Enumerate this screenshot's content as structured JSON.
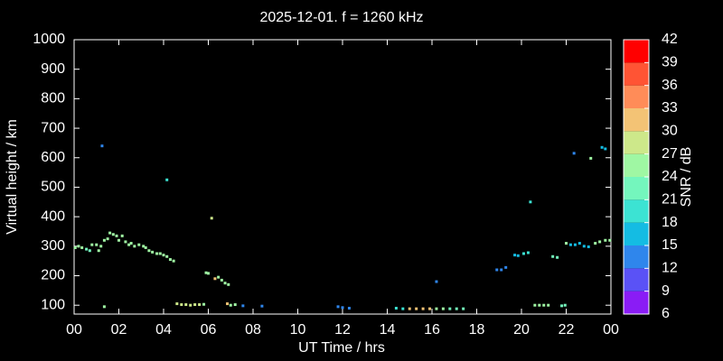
{
  "chart_data": {
    "type": "scatter",
    "title": "2025-12-01. f = 1260 kHz",
    "x_label": "UT Time / hrs",
    "y_label": "Virtual height / km",
    "xlim": [
      0,
      24
    ],
    "ylim": [
      70,
      1000
    ],
    "xticks": [
      {
        "value": 0,
        "label": "00"
      },
      {
        "value": 2,
        "label": "02"
      },
      {
        "value": 4,
        "label": "04"
      },
      {
        "value": 6,
        "label": "06"
      },
      {
        "value": 8,
        "label": "08"
      },
      10,
      12,
      14,
      16,
      18,
      20,
      22,
      {
        "value": 24,
        "label": "00"
      }
    ],
    "yticks": [
      100,
      200,
      300,
      400,
      500,
      600,
      700,
      800,
      900,
      1000
    ],
    "colorbar": {
      "label": "SNR / dB",
      "lim": [
        6,
        42
      ],
      "ticks": [
        6,
        9,
        12,
        15,
        18,
        21,
        24,
        27,
        30,
        33,
        36,
        39,
        42
      ],
      "colors": [
        "#8a1cf5",
        "#5a52f6",
        "#2f86ec",
        "#14bce3",
        "#3ce3d3",
        "#74f6bd",
        "#9ff7a3",
        "#cde88a",
        "#f3c375",
        "#ff8c58",
        "#ff5434",
        "#ff0000"
      ]
    },
    "x": [
      0.05,
      0.2,
      0.35,
      0.55,
      0.7,
      0.8,
      1.0,
      1.1,
      1.2,
      1.35,
      1.5,
      1.6,
      1.75,
      1.9,
      2.0,
      2.15,
      2.3,
      2.45,
      2.55,
      2.7,
      2.9,
      3.1,
      3.2,
      3.35,
      3.5,
      3.7,
      3.85,
      4.0,
      4.15,
      4.3,
      4.45,
      1.35,
      1.25,
      4.15,
      6.15,
      4.6,
      4.8,
      5.0,
      5.2,
      5.4,
      5.6,
      5.8,
      5.9,
      6.0,
      6.3,
      6.45,
      6.6,
      6.75,
      6.9,
      6.85,
      7.0,
      7.2,
      7.55,
      8.4,
      11.8,
      12.0,
      12.3,
      14.4,
      14.7,
      15.0,
      15.3,
      15.6,
      15.9,
      16.2,
      16.5,
      16.8,
      17.1,
      17.4,
      16.2,
      18.9,
      19.1,
      19.3,
      19.7,
      19.85,
      20.1,
      20.3,
      20.4,
      20.6,
      20.8,
      21.0,
      21.2,
      21.4,
      21.6,
      21.8,
      21.95,
      22.0,
      22.2,
      22.4,
      22.6,
      22.8,
      23.0,
      22.35,
      23.1,
      23.3,
      23.5,
      23.75,
      23.95,
      23.6,
      23.75
    ],
    "values": [
      295,
      300,
      295,
      290,
      285,
      305,
      305,
      285,
      300,
      320,
      325,
      345,
      340,
      335,
      320,
      335,
      315,
      305,
      310,
      300,
      305,
      300,
      295,
      285,
      280,
      275,
      275,
      270,
      265,
      255,
      250,
      95,
      640,
      525,
      395,
      105,
      102,
      102,
      100,
      102,
      102,
      103,
      210,
      208,
      190,
      195,
      185,
      175,
      170,
      105,
      100,
      102,
      98,
      97,
      95,
      92,
      90,
      90,
      88,
      88,
      88,
      88,
      88,
      88,
      88,
      88,
      88,
      88,
      180,
      220,
      220,
      228,
      270,
      268,
      275,
      278,
      450,
      100,
      100,
      100,
      100,
      265,
      262,
      98,
      100,
      310,
      305,
      305,
      310,
      300,
      298,
      615,
      598,
      310,
      315,
      320,
      320,
      635,
      630
    ],
    "snr": [
      24,
      24,
      24,
      22,
      22,
      24,
      26,
      24,
      24,
      24,
      24,
      24,
      24,
      24,
      24,
      24,
      24,
      24,
      24,
      24,
      24,
      24,
      24,
      26,
      26,
      26,
      26,
      26,
      26,
      26,
      26,
      24,
      12,
      18,
      27,
      27,
      27,
      27,
      29,
      27,
      27,
      24,
      24,
      24,
      30,
      24,
      24,
      24,
      24,
      30,
      24,
      24,
      12,
      12,
      12,
      12,
      12,
      18,
      18,
      30,
      30,
      30,
      30,
      24,
      24,
      21,
      21,
      21,
      12,
      12,
      12,
      12,
      15,
      15,
      18,
      18,
      18,
      24,
      24,
      24,
      24,
      21,
      21,
      21,
      21,
      24,
      15,
      15,
      15,
      15,
      15,
      12,
      24,
      24,
      24,
      24,
      24,
      15,
      15
    ]
  }
}
